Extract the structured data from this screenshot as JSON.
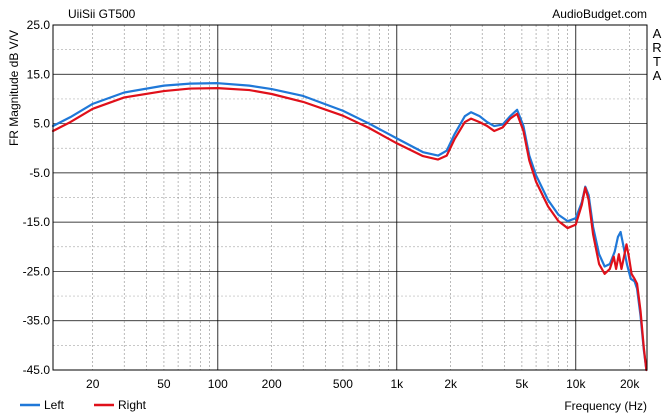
{
  "chart_data": {
    "type": "line",
    "title": "UiiSii GT500",
    "source_label": "AudioBudget.com",
    "side_label": "ARTA",
    "xlabel": "Frequency (Hz)",
    "ylabel": "FR Magnitude dB V/V",
    "x_scale": "log",
    "xlim": [
      12,
      25000
    ],
    "ylim": [
      -45,
      25
    ],
    "grid": true,
    "legend_position": "bottom-left",
    "x_ticks": [
      {
        "value": 20,
        "label": "20"
      },
      {
        "value": 50,
        "label": "50"
      },
      {
        "value": 100,
        "label": "100"
      },
      {
        "value": 200,
        "label": "200"
      },
      {
        "value": 500,
        "label": "500"
      },
      {
        "value": 1000,
        "label": "1k"
      },
      {
        "value": 2000,
        "label": "2k"
      },
      {
        "value": 5000,
        "label": "5k"
      },
      {
        "value": 10000,
        "label": "10k"
      },
      {
        "value": 20000,
        "label": "20k"
      }
    ],
    "y_ticks": [
      {
        "value": 25,
        "label": "25.0"
      },
      {
        "value": 15,
        "label": "15.0"
      },
      {
        "value": 5,
        "label": "5.0"
      },
      {
        "value": -5,
        "label": "-5.0"
      },
      {
        "value": -15,
        "label": "-15.0"
      },
      {
        "value": -25,
        "label": "-25.0"
      },
      {
        "value": -35,
        "label": "-35.0"
      },
      {
        "value": -45,
        "label": "-45.0"
      }
    ],
    "series": [
      {
        "name": "Left",
        "color": "#1f78d8",
        "points": [
          [
            12,
            4.5
          ],
          [
            15,
            6.3
          ],
          [
            20,
            9
          ],
          [
            30,
            11.3
          ],
          [
            50,
            12.7
          ],
          [
            70,
            13.1
          ],
          [
            100,
            13.2
          ],
          [
            150,
            12.7
          ],
          [
            200,
            12
          ],
          [
            300,
            10.6
          ],
          [
            500,
            7.6
          ],
          [
            700,
            5
          ],
          [
            1000,
            2
          ],
          [
            1400,
            -0.8
          ],
          [
            1700,
            -1.5
          ],
          [
            1900,
            -0.5
          ],
          [
            2100,
            2.8
          ],
          [
            2400,
            6.5
          ],
          [
            2600,
            7.3
          ],
          [
            2900,
            6.5
          ],
          [
            3200,
            5.3
          ],
          [
            3500,
            4.5
          ],
          [
            3900,
            4.8
          ],
          [
            4300,
            6.5
          ],
          [
            4700,
            7.8
          ],
          [
            5100,
            4.5
          ],
          [
            5500,
            -1.5
          ],
          [
            6000,
            -5.5
          ],
          [
            7000,
            -10.5
          ],
          [
            8000,
            -13.5
          ],
          [
            9000,
            -14.8
          ],
          [
            10000,
            -14.2
          ],
          [
            10800,
            -11
          ],
          [
            11300,
            -7.8
          ],
          [
            11800,
            -9.5
          ],
          [
            12500,
            -16
          ],
          [
            13500,
            -21.5
          ],
          [
            14500,
            -24
          ],
          [
            15500,
            -23.5
          ],
          [
            16500,
            -21
          ],
          [
            17200,
            -18
          ],
          [
            17800,
            -17
          ],
          [
            18500,
            -20
          ],
          [
            19300,
            -23.5
          ],
          [
            20300,
            -26.5
          ],
          [
            21300,
            -27
          ],
          [
            22000,
            -28.5
          ],
          [
            23000,
            -34
          ],
          [
            24000,
            -41
          ],
          [
            24800,
            -45
          ]
        ]
      },
      {
        "name": "Right",
        "color": "#e0101a",
        "points": [
          [
            12,
            3.5
          ],
          [
            15,
            5.3
          ],
          [
            20,
            8
          ],
          [
            30,
            10.3
          ],
          [
            50,
            11.6
          ],
          [
            70,
            12.1
          ],
          [
            100,
            12.2
          ],
          [
            150,
            11.8
          ],
          [
            200,
            11
          ],
          [
            300,
            9.4
          ],
          [
            500,
            6.6
          ],
          [
            700,
            4.1
          ],
          [
            1000,
            1
          ],
          [
            1400,
            -1.6
          ],
          [
            1700,
            -2.3
          ],
          [
            1900,
            -1.5
          ],
          [
            2100,
            1.8
          ],
          [
            2400,
            5.3
          ],
          [
            2600,
            6
          ],
          [
            2900,
            5.3
          ],
          [
            3200,
            4.5
          ],
          [
            3500,
            3.5
          ],
          [
            3900,
            4.2
          ],
          [
            4300,
            6
          ],
          [
            4700,
            7
          ],
          [
            5100,
            3.5
          ],
          [
            5500,
            -2.5
          ],
          [
            6000,
            -6.8
          ],
          [
            7000,
            -11.8
          ],
          [
            8000,
            -14.8
          ],
          [
            9000,
            -16.2
          ],
          [
            10000,
            -15.5
          ],
          [
            10800,
            -11.5
          ],
          [
            11300,
            -8
          ],
          [
            11800,
            -10.5
          ],
          [
            12500,
            -17.5
          ],
          [
            13500,
            -23.5
          ],
          [
            14500,
            -25.5
          ],
          [
            15500,
            -24.5
          ],
          [
            16300,
            -22
          ],
          [
            16800,
            -24.5
          ],
          [
            17400,
            -21.5
          ],
          [
            18000,
            -24.5
          ],
          [
            18600,
            -22
          ],
          [
            19200,
            -19.5
          ],
          [
            19800,
            -22
          ],
          [
            20500,
            -25.5
          ],
          [
            21300,
            -26.5
          ],
          [
            22000,
            -27.5
          ],
          [
            23000,
            -33
          ],
          [
            24000,
            -40.5
          ],
          [
            24800,
            -45
          ]
        ]
      }
    ]
  }
}
